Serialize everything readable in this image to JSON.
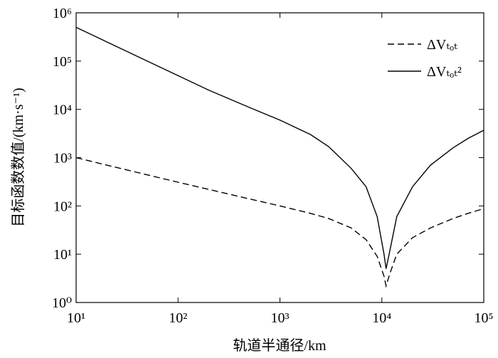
{
  "chart_data": {
    "type": "line",
    "x_label": "轨道半通径/km",
    "y_label": "目标函数数值/(km·s⁻¹)",
    "log_x": true,
    "log_y": true,
    "xlim": [
      10,
      100000
    ],
    "xticks": [
      {
        "value": 10,
        "label": "10¹"
      },
      {
        "value": 100,
        "label": "10²"
      },
      {
        "value": 1000,
        "label": "10³"
      },
      {
        "value": 10000,
        "label": "10⁴"
      },
      {
        "value": 100000,
        "label": "10⁵"
      }
    ],
    "ylim": [
      1,
      1000000
    ],
    "yticks": [
      {
        "value": 1,
        "label": "10⁰"
      },
      {
        "value": 10,
        "label": "10¹"
      },
      {
        "value": 100,
        "label": "10²"
      },
      {
        "value": 1000,
        "label": "10³"
      },
      {
        "value": 10000,
        "label": "10⁴"
      },
      {
        "value": 100000,
        "label": "10⁵"
      },
      {
        "value": 1000000,
        "label": "10⁶"
      }
    ],
    "legend": "upper right",
    "x": [
      10,
      20,
      50,
      100,
      200,
      500,
      1000,
      2000,
      3000,
      5000,
      7000,
      9000,
      10500,
      11000,
      12000,
      14000,
      20000,
      30000,
      50000,
      70000,
      100000
    ],
    "series": [
      {
        "name": "ΔVₜₒₜ",
        "color": "#000000",
        "dash": true,
        "values": [
          1000,
          700,
          440,
          310,
          220,
          140,
          100,
          70,
          55,
          35,
          20,
          9,
          3.5,
          2.2,
          4,
          10,
          22,
          35,
          55,
          70,
          88
        ]
      },
      {
        "name": "ΔVₜₒₜ²",
        "color": "#000000",
        "dash": false,
        "values": [
          500000,
          250000,
          100000,
          50000,
          25000,
          11000,
          6000,
          3000,
          1700,
          600,
          250,
          60,
          10,
          5,
          12,
          60,
          250,
          700,
          1600,
          2500,
          3700
        ]
      }
    ]
  }
}
